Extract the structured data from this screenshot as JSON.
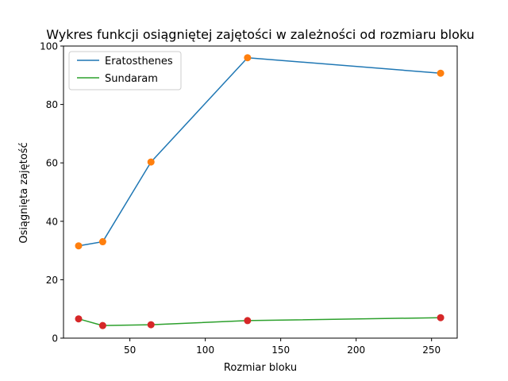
{
  "chart_data": {
    "type": "line",
    "title": "Wykres funkcji osiągniętej zajętości w zależności od rozmiaru bloku",
    "xlabel": "Rozmiar bloku",
    "ylabel": "Osiągnięta zajętość",
    "x": [
      16,
      32,
      64,
      128,
      256
    ],
    "xlim": [
      6,
      267
    ],
    "ylim": [
      0,
      100
    ],
    "xticks": [
      50,
      100,
      150,
      200,
      250
    ],
    "yticks": [
      0,
      20,
      40,
      60,
      80,
      100
    ],
    "grid": false,
    "legend_position": "top-left",
    "series": [
      {
        "name": "Eratosthenes",
        "values": [
          31.6,
          33.0,
          60.3,
          96.0,
          90.7
        ],
        "line_color": "#1f77b4",
        "marker_color": "#ff7f0e"
      },
      {
        "name": "Sundaram",
        "values": [
          6.6,
          4.3,
          4.6,
          6.0,
          7.0
        ],
        "line_color": "#2ca02c",
        "marker_color": "#d62728"
      }
    ]
  }
}
